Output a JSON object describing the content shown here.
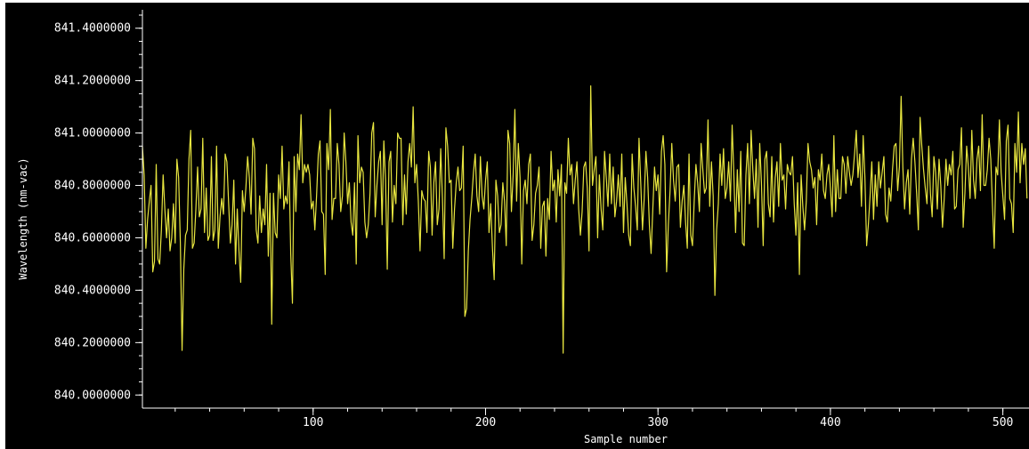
{
  "chart_data": {
    "type": "line",
    "title": "",
    "xlabel": "Sample number",
    "ylabel": "Wavelength (nm-vac)",
    "xlim": [
      1,
      510
    ],
    "ylim": [
      839.95,
      841.45
    ],
    "x_ticks": [
      100,
      200,
      300,
      400,
      500
    ],
    "x_tick_labels": [
      "100",
      "200",
      "300",
      "400",
      "500"
    ],
    "y_ticks": [
      840.0,
      840.2,
      840.4,
      840.6,
      840.8,
      841.0,
      841.2,
      841.4
    ],
    "y_tick_labels": [
      "840.0000000",
      "840.2000000",
      "840.4000000",
      "840.6000000",
      "840.8000000",
      "841.0000000",
      "841.2000000",
      "841.4000000"
    ],
    "grid": false,
    "background": "#000000",
    "axis_color": "#ffffff",
    "series": [
      {
        "color": "#e8e640",
        "x_start": 1,
        "x_step": 1,
        "values": [
          840.95,
          840.84,
          840.56,
          840.67,
          840.74,
          840.8,
          840.47,
          840.51,
          840.88,
          840.52,
          840.5,
          840.63,
          840.84,
          840.71,
          840.6,
          840.71,
          840.55,
          840.6,
          840.73,
          840.58,
          840.9,
          840.83,
          840.58,
          840.17,
          840.48,
          840.61,
          840.63,
          840.9,
          841.01,
          840.56,
          840.58,
          840.71,
          840.87,
          840.68,
          840.71,
          840.98,
          840.62,
          840.79,
          840.59,
          840.61,
          840.91,
          840.59,
          840.63,
          840.95,
          840.56,
          840.68,
          840.75,
          840.69,
          840.92,
          840.89,
          840.73,
          840.58,
          840.65,
          840.82,
          840.5,
          840.71,
          840.55,
          840.43,
          840.78,
          840.7,
          840.79,
          840.91,
          840.83,
          840.69,
          840.98,
          840.94,
          840.63,
          840.58,
          840.76,
          840.62,
          840.71,
          840.65,
          840.88,
          840.53,
          840.77,
          840.27,
          840.77,
          840.62,
          840.6,
          840.84,
          840.75,
          840.95,
          840.71,
          840.76,
          840.73,
          840.89,
          840.54,
          840.35,
          840.91,
          840.7,
          840.92,
          840.86,
          841.07,
          840.81,
          840.88,
          840.85,
          840.88,
          840.84,
          840.71,
          840.74,
          840.63,
          840.76,
          840.92,
          840.97,
          840.7,
          840.69,
          840.46,
          840.96,
          840.86,
          841.09,
          840.67,
          840.75,
          840.75,
          840.96,
          840.88,
          840.7,
          840.76,
          841.0,
          840.89,
          840.73,
          840.81,
          840.66,
          840.61,
          840.81,
          840.5,
          840.99,
          840.81,
          840.87,
          840.85,
          840.66,
          840.6,
          840.65,
          840.77,
          841.0,
          841.04,
          840.68,
          840.8,
          840.89,
          840.93,
          840.65,
          840.97,
          840.82,
          840.48,
          840.89,
          840.93,
          840.66,
          840.8,
          840.73,
          841.0,
          840.98,
          840.98,
          840.65,
          840.84,
          840.69,
          840.89,
          840.96,
          840.87,
          841.1,
          840.81,
          840.88,
          840.74,
          840.55,
          840.78,
          840.75,
          840.74,
          840.62,
          840.93,
          840.87,
          840.61,
          840.81,
          840.89,
          840.65,
          840.71,
          840.94,
          840.75,
          840.52,
          841.02,
          840.95,
          840.81,
          840.82,
          840.56,
          840.71,
          840.81,
          840.87,
          840.78,
          840.79,
          840.95,
          840.3,
          840.33,
          840.55,
          840.67,
          840.75,
          840.85,
          840.92,
          840.76,
          840.7,
          840.91,
          840.76,
          840.71,
          840.82,
          840.89,
          840.62,
          840.73,
          840.56,
          840.44,
          840.82,
          840.76,
          840.62,
          840.65,
          840.81,
          840.74,
          840.57,
          841.01,
          840.96,
          840.7,
          840.84,
          841.09,
          840.74,
          840.96,
          840.83,
          840.5,
          840.78,
          840.82,
          840.73,
          840.88,
          840.92,
          840.59,
          840.65,
          840.77,
          840.8,
          840.87,
          840.56,
          840.72,
          840.74,
          840.53,
          840.75,
          840.67,
          840.93,
          840.78,
          840.82,
          840.66,
          840.86,
          840.76,
          840.88,
          840.16,
          840.81,
          840.77,
          840.98,
          840.84,
          840.88,
          840.73,
          840.82,
          840.89,
          840.71,
          840.61,
          840.7,
          840.87,
          840.89,
          840.79,
          840.55,
          841.18,
          840.8,
          840.86,
          840.91,
          840.6,
          840.84,
          840.71,
          840.63,
          840.93,
          840.83,
          840.72,
          840.92,
          840.73,
          840.87,
          840.68,
          840.74,
          840.84,
          840.72,
          840.92,
          840.62,
          840.83,
          840.73,
          840.61,
          840.57,
          840.92,
          840.79,
          840.72,
          840.63,
          840.98,
          840.81,
          840.63,
          840.75,
          840.93,
          840.83,
          840.65,
          840.54,
          840.71,
          840.87,
          840.78,
          840.84,
          840.69,
          840.93,
          840.99,
          840.88,
          840.47,
          840.65,
          840.78,
          840.96,
          840.82,
          840.74,
          840.87,
          840.88,
          840.64,
          840.74,
          840.8,
          840.66,
          840.56,
          840.92,
          840.61,
          840.57,
          840.74,
          840.88,
          840.81,
          840.7,
          840.96,
          840.86,
          840.77,
          840.79,
          841.05,
          840.72,
          840.89,
          840.76,
          840.38,
          840.63,
          840.73,
          840.92,
          840.8,
          840.94,
          840.75,
          840.79,
          840.89,
          840.74,
          841.03,
          840.84,
          840.62,
          840.86,
          840.7,
          840.93,
          840.58,
          840.57,
          840.84,
          840.96,
          840.73,
          841.01,
          840.86,
          840.75,
          840.9,
          840.64,
          840.96,
          840.81,
          840.57,
          840.9,
          840.93,
          840.73,
          840.68,
          840.91,
          840.66,
          840.83,
          840.89,
          840.72,
          840.96,
          840.82,
          840.84,
          840.71,
          840.88,
          840.85,
          840.84,
          840.91,
          840.73,
          840.61,
          840.81,
          840.46,
          840.84,
          840.72,
          840.63,
          840.74,
          840.96,
          840.89,
          840.86,
          840.79,
          840.83,
          840.65,
          840.86,
          840.82,
          840.92,
          840.78,
          840.75,
          840.84,
          840.88,
          840.79,
          840.68,
          840.99,
          840.7,
          840.86,
          840.75,
          840.75,
          840.91,
          840.88,
          840.77,
          840.91,
          840.85,
          840.8,
          840.84,
          840.92,
          841.01,
          840.83,
          840.92,
          840.72,
          840.99,
          840.83,
          840.57,
          840.65,
          840.76,
          840.89,
          840.67,
          840.84,
          840.72,
          840.89,
          840.79,
          840.85,
          840.91,
          840.69,
          840.66,
          840.79,
          840.74,
          840.86,
          840.95,
          840.96,
          840.78,
          840.87,
          841.14,
          840.87,
          840.71,
          840.81,
          840.86,
          840.69,
          840.9,
          840.98,
          840.89,
          840.77,
          840.63,
          841.06,
          840.95,
          840.86,
          840.79,
          840.73,
          840.95,
          840.77,
          840.68,
          840.91,
          840.85,
          840.71,
          840.9,
          840.8,
          840.64,
          840.75,
          840.9,
          840.8,
          840.88,
          840.84,
          840.93,
          840.71,
          840.72,
          840.86,
          840.88,
          841.02,
          840.64,
          840.77,
          840.95,
          840.87,
          840.75,
          841.01,
          840.82,
          840.75,
          840.9,
          840.95,
          840.78,
          841.07,
          840.8,
          840.8,
          840.86,
          840.98,
          840.9,
          840.72,
          840.56,
          840.87,
          840.84,
          841.05,
          840.85,
          840.76,
          840.67,
          840.97,
          841.03,
          840.75,
          840.73,
          840.62,
          840.96,
          840.85,
          841.08,
          840.81,
          840.96,
          840.88,
          840.94,
          840.75
        ]
      }
    ]
  }
}
